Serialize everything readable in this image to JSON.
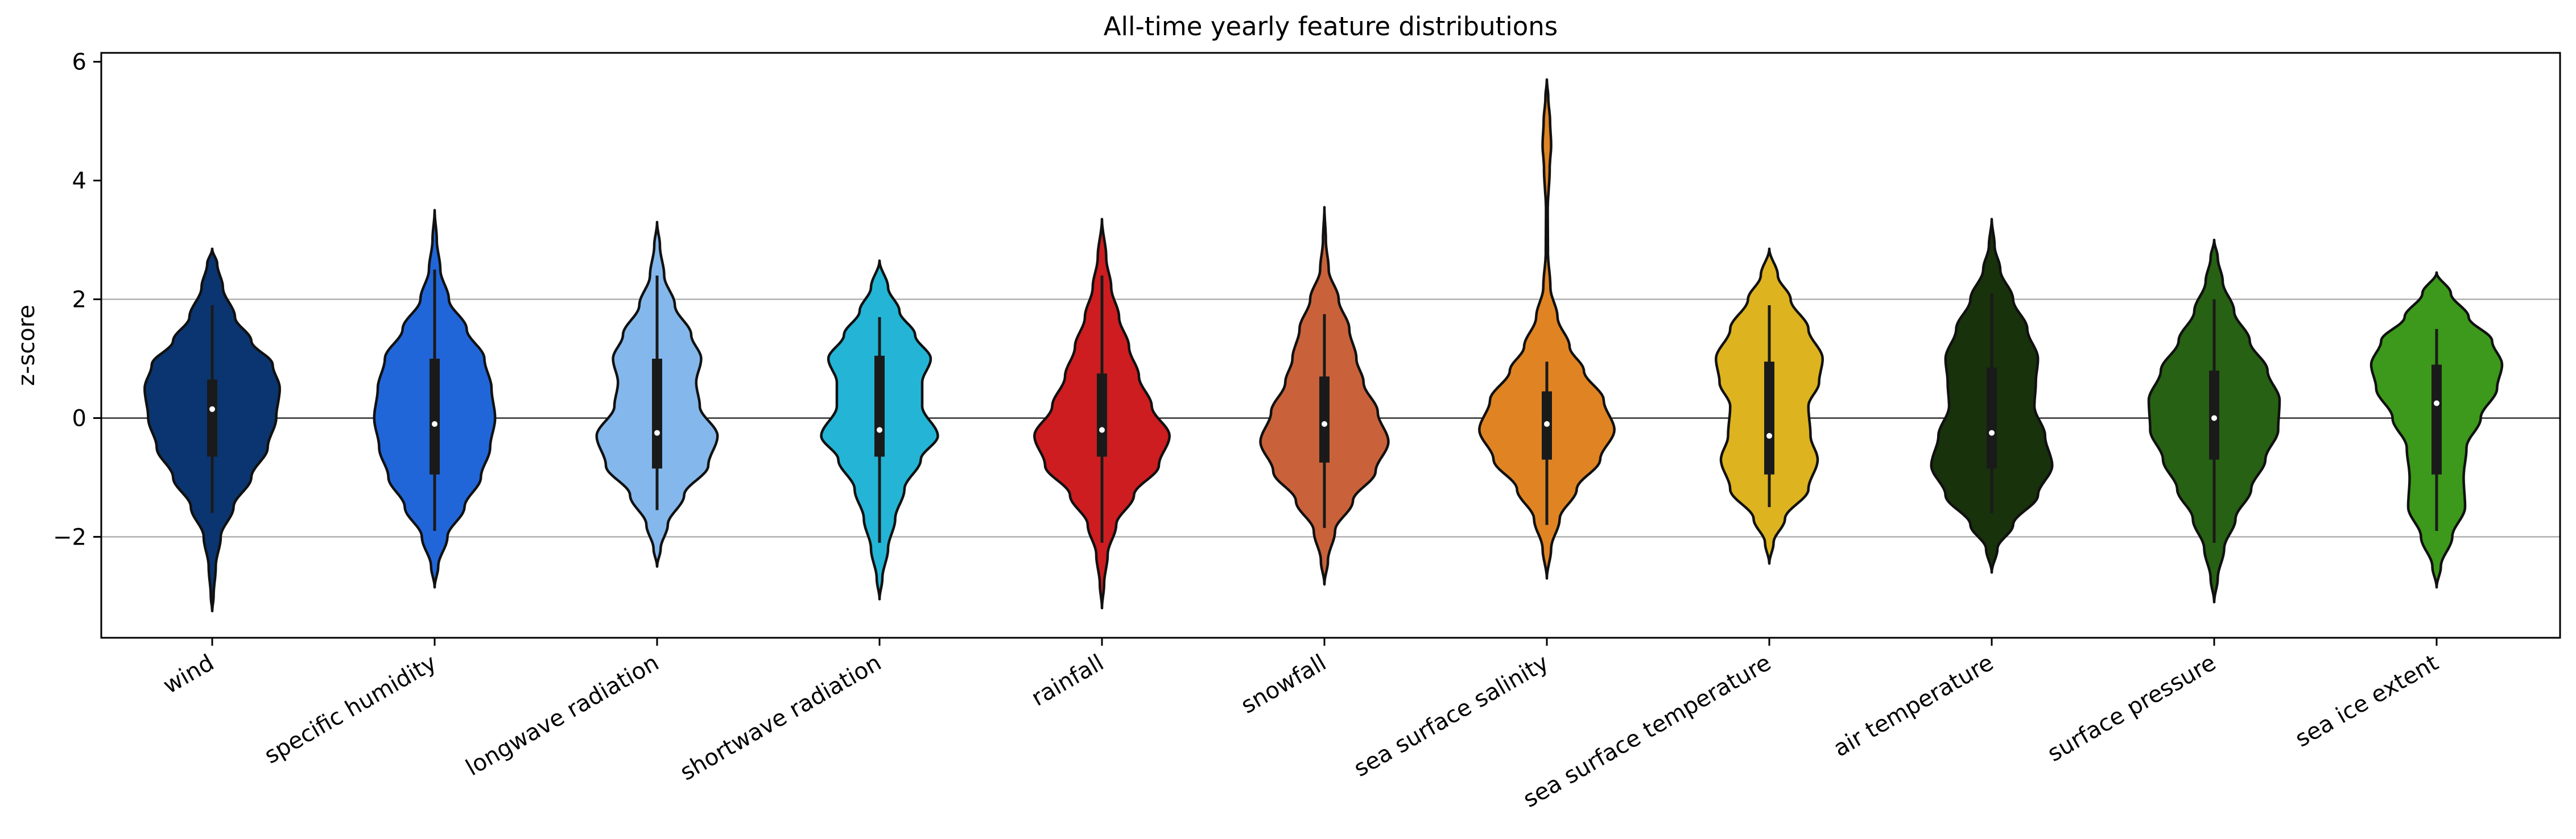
{
  "chart_data": {
    "type": "violin",
    "title": "All-time yearly feature distributions",
    "xlabel": "",
    "ylabel": "z-score",
    "ylim": [
      -3.7,
      6.15
    ],
    "yticks": [
      -2,
      0,
      2,
      4,
      6
    ],
    "ytick_labels": [
      "−2",
      "0",
      "2",
      "4",
      "6"
    ],
    "hlines": [
      -2,
      0,
      2
    ],
    "categories": [
      "wind",
      "specific humidity",
      "longwave radiation",
      "shortwave radiation",
      "rainfall",
      "snowfall",
      "sea surface salinity",
      "sea surface temperature",
      "air temperature",
      "surface pressure",
      "sea ice extent"
    ],
    "colors": [
      "#0b3570",
      "#2166d9",
      "#84b8ec",
      "#24b5d6",
      "#cd1d20",
      "#c9623a",
      "#e08423",
      "#ddb320",
      "#18320c",
      "#276113",
      "#3c991b"
    ],
    "violins": [
      {
        "min": -3.25,
        "max": 2.85,
        "median": 0.15,
        "q1": -0.65,
        "q3": 0.65,
        "whisker_low": -1.6,
        "whisker_high": 1.9,
        "profile": [
          [
            -3.25,
            0
          ],
          [
            -3.0,
            0.02
          ],
          [
            -2.5,
            0.05
          ],
          [
            -2.0,
            0.12
          ],
          [
            -1.5,
            0.3
          ],
          [
            -1.0,
            0.55
          ],
          [
            -0.5,
            0.78
          ],
          [
            0.0,
            0.9
          ],
          [
            0.5,
            0.95
          ],
          [
            0.9,
            0.85
          ],
          [
            1.3,
            0.55
          ],
          [
            1.7,
            0.32
          ],
          [
            2.2,
            0.15
          ],
          [
            2.6,
            0.07
          ],
          [
            2.85,
            0
          ]
        ]
      },
      {
        "min": -2.85,
        "max": 3.5,
        "median": -0.1,
        "q1": -0.95,
        "q3": 1.0,
        "whisker_low": -1.9,
        "whisker_high": 2.5,
        "profile": [
          [
            -2.85,
            0
          ],
          [
            -2.5,
            0.05
          ],
          [
            -2.0,
            0.18
          ],
          [
            -1.5,
            0.42
          ],
          [
            -1.0,
            0.65
          ],
          [
            -0.5,
            0.78
          ],
          [
            0.0,
            0.85
          ],
          [
            0.5,
            0.8
          ],
          [
            1.0,
            0.7
          ],
          [
            1.5,
            0.45
          ],
          [
            2.0,
            0.2
          ],
          [
            2.5,
            0.08
          ],
          [
            3.0,
            0.03
          ],
          [
            3.5,
            0
          ]
        ]
      },
      {
        "min": -2.5,
        "max": 3.3,
        "median": -0.25,
        "q1": -0.85,
        "q3": 1.0,
        "whisker_low": -1.55,
        "whisker_high": 2.4,
        "profile": [
          [
            -2.5,
            0
          ],
          [
            -2.2,
            0.05
          ],
          [
            -1.8,
            0.15
          ],
          [
            -1.3,
            0.38
          ],
          [
            -0.8,
            0.72
          ],
          [
            -0.3,
            0.85
          ],
          [
            0.2,
            0.6
          ],
          [
            0.6,
            0.55
          ],
          [
            1.0,
            0.62
          ],
          [
            1.4,
            0.48
          ],
          [
            1.9,
            0.25
          ],
          [
            2.4,
            0.1
          ],
          [
            2.9,
            0.04
          ],
          [
            3.3,
            0
          ]
        ]
      },
      {
        "min": -3.05,
        "max": 2.65,
        "median": -0.2,
        "q1": -0.65,
        "q3": 1.05,
        "whisker_low": -2.1,
        "whisker_high": 1.7,
        "profile": [
          [
            -3.05,
            0
          ],
          [
            -2.7,
            0.04
          ],
          [
            -2.2,
            0.12
          ],
          [
            -1.7,
            0.22
          ],
          [
            -1.2,
            0.35
          ],
          [
            -0.7,
            0.58
          ],
          [
            -0.3,
            0.82
          ],
          [
            0.2,
            0.6
          ],
          [
            0.6,
            0.6
          ],
          [
            1.0,
            0.72
          ],
          [
            1.4,
            0.5
          ],
          [
            1.8,
            0.28
          ],
          [
            2.2,
            0.12
          ],
          [
            2.65,
            0
          ]
        ]
      },
      {
        "min": -3.2,
        "max": 3.35,
        "median": -0.2,
        "q1": -0.65,
        "q3": 0.75,
        "whisker_low": -2.1,
        "whisker_high": 2.4,
        "profile": [
          [
            -3.2,
            0
          ],
          [
            -2.8,
            0.03
          ],
          [
            -2.3,
            0.08
          ],
          [
            -1.8,
            0.2
          ],
          [
            -1.3,
            0.45
          ],
          [
            -0.8,
            0.8
          ],
          [
            -0.3,
            0.95
          ],
          [
            0.2,
            0.7
          ],
          [
            0.7,
            0.52
          ],
          [
            1.2,
            0.38
          ],
          [
            1.7,
            0.24
          ],
          [
            2.2,
            0.13
          ],
          [
            2.7,
            0.06
          ],
          [
            3.35,
            0
          ]
        ]
      },
      {
        "min": -2.8,
        "max": 3.55,
        "median": -0.1,
        "q1": -0.75,
        "q3": 0.7,
        "whisker_low": -1.85,
        "whisker_high": 1.75,
        "profile": [
          [
            -2.8,
            0
          ],
          [
            -2.4,
            0.05
          ],
          [
            -1.9,
            0.15
          ],
          [
            -1.4,
            0.4
          ],
          [
            -0.9,
            0.72
          ],
          [
            -0.4,
            0.9
          ],
          [
            0.1,
            0.75
          ],
          [
            0.6,
            0.55
          ],
          [
            1.0,
            0.45
          ],
          [
            1.5,
            0.35
          ],
          [
            2.0,
            0.2
          ],
          [
            2.5,
            0.06
          ],
          [
            3.0,
            0.02
          ],
          [
            3.55,
            0
          ]
        ]
      },
      {
        "min": -2.7,
        "max": 5.7,
        "median": -0.1,
        "q1": -0.7,
        "q3": 0.45,
        "whisker_low": -1.8,
        "whisker_high": 0.95,
        "profile": [
          [
            -2.7,
            0
          ],
          [
            -2.2,
            0.06
          ],
          [
            -1.7,
            0.18
          ],
          [
            -1.2,
            0.42
          ],
          [
            -0.7,
            0.75
          ],
          [
            -0.2,
            0.95
          ],
          [
            0.3,
            0.8
          ],
          [
            0.8,
            0.52
          ],
          [
            1.2,
            0.32
          ],
          [
            1.7,
            0.15
          ],
          [
            2.2,
            0.05
          ],
          [
            2.8,
            0.015
          ],
          [
            3.5,
            0.012
          ],
          [
            4.2,
            0.04
          ],
          [
            4.6,
            0.06
          ],
          [
            5.0,
            0.045
          ],
          [
            5.4,
            0.02
          ],
          [
            5.7,
            0
          ]
        ]
      },
      {
        "min": -2.45,
        "max": 2.85,
        "median": -0.3,
        "q1": -0.95,
        "q3": 0.95,
        "whisker_low": -1.5,
        "whisker_high": 1.9,
        "profile": [
          [
            -2.45,
            0
          ],
          [
            -2.1,
            0.06
          ],
          [
            -1.7,
            0.22
          ],
          [
            -1.2,
            0.55
          ],
          [
            -0.7,
            0.68
          ],
          [
            -0.3,
            0.58
          ],
          [
            0.2,
            0.55
          ],
          [
            0.6,
            0.7
          ],
          [
            1.0,
            0.75
          ],
          [
            1.5,
            0.55
          ],
          [
            2.0,
            0.3
          ],
          [
            2.4,
            0.12
          ],
          [
            2.85,
            0
          ]
        ]
      },
      {
        "min": -2.6,
        "max": 3.35,
        "median": -0.25,
        "q1": -0.85,
        "q3": 0.85,
        "whisker_low": -1.6,
        "whisker_high": 2.1,
        "profile": [
          [
            -2.6,
            0
          ],
          [
            -2.2,
            0.08
          ],
          [
            -1.8,
            0.3
          ],
          [
            -1.3,
            0.65
          ],
          [
            -0.8,
            0.85
          ],
          [
            -0.3,
            0.75
          ],
          [
            0.2,
            0.6
          ],
          [
            0.6,
            0.62
          ],
          [
            1.0,
            0.65
          ],
          [
            1.5,
            0.5
          ],
          [
            2.0,
            0.3
          ],
          [
            2.5,
            0.12
          ],
          [
            2.9,
            0.04
          ],
          [
            3.35,
            0
          ]
        ]
      },
      {
        "min": -3.1,
        "max": 3.0,
        "median": 0.0,
        "q1": -0.7,
        "q3": 0.8,
        "whisker_low": -2.1,
        "whisker_high": 2.0,
        "profile": [
          [
            -3.1,
            0
          ],
          [
            -2.7,
            0.05
          ],
          [
            -2.2,
            0.14
          ],
          [
            -1.7,
            0.3
          ],
          [
            -1.2,
            0.52
          ],
          [
            -0.7,
            0.72
          ],
          [
            -0.2,
            0.9
          ],
          [
            0.3,
            0.92
          ],
          [
            0.8,
            0.75
          ],
          [
            1.3,
            0.5
          ],
          [
            1.8,
            0.28
          ],
          [
            2.3,
            0.12
          ],
          [
            2.7,
            0.05
          ],
          [
            3.0,
            0
          ]
        ]
      },
      {
        "min": -2.85,
        "max": 2.45,
        "median": 0.25,
        "q1": -0.95,
        "q3": 0.9,
        "whisker_low": -1.9,
        "whisker_high": 1.5,
        "profile": [
          [
            -2.85,
            0
          ],
          [
            -2.5,
            0.06
          ],
          [
            -2.0,
            0.22
          ],
          [
            -1.5,
            0.4
          ],
          [
            -1.0,
            0.38
          ],
          [
            -0.5,
            0.42
          ],
          [
            0.0,
            0.62
          ],
          [
            0.5,
            0.85
          ],
          [
            0.9,
            0.92
          ],
          [
            1.3,
            0.78
          ],
          [
            1.7,
            0.45
          ],
          [
            2.1,
            0.2
          ],
          [
            2.45,
            0
          ]
        ]
      }
    ]
  }
}
